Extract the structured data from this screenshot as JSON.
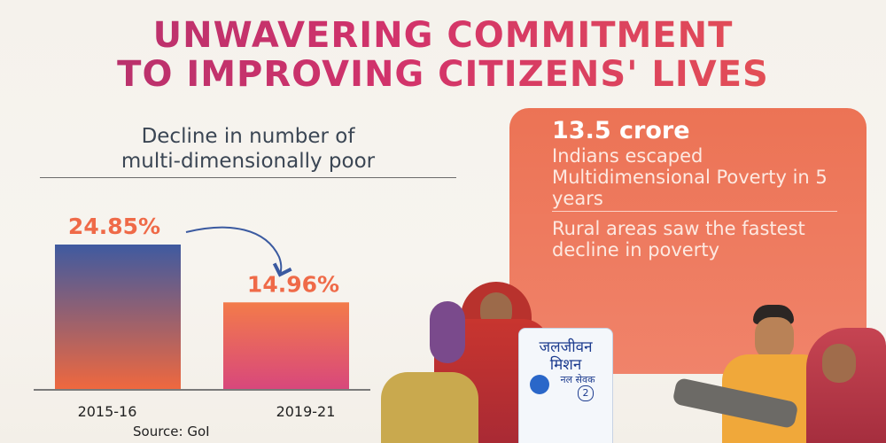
{
  "headline": {
    "line1": "UNWAVERING COMMITMENT",
    "line2": "TO IMPROVING CITIZENS' LIVES"
  },
  "chart_data": {
    "type": "bar",
    "title_line1": "Decline in number of",
    "title_line2": "multi-dimensionally poor",
    "categories": [
      "2015-16",
      "2019-21"
    ],
    "values": [
      24.85,
      14.96
    ],
    "value_labels": [
      "24.85%",
      "14.96%"
    ],
    "unit": "%",
    "ylim": [
      0,
      30
    ],
    "grid": false,
    "colors": {
      "bar1_top": "#3f5aa0",
      "bar1_bottom": "#f0683e",
      "bar2_top": "#f37b4a",
      "bar2_bottom": "#d8477c",
      "label": "#ef6a48",
      "arrow": "#3b5aa0"
    }
  },
  "source": "Source: GoI",
  "callout": {
    "headline": "13.5 crore",
    "para1": "Indians escaped Multidimensional Poverty in 5 years",
    "para2": "Rural areas saw the fastest decline in poverty"
  },
  "photo": {
    "sign_line1": "जलजीवन",
    "sign_line2": "मिशन",
    "sign_line3": "नल सेवक",
    "sign_number": "2"
  }
}
